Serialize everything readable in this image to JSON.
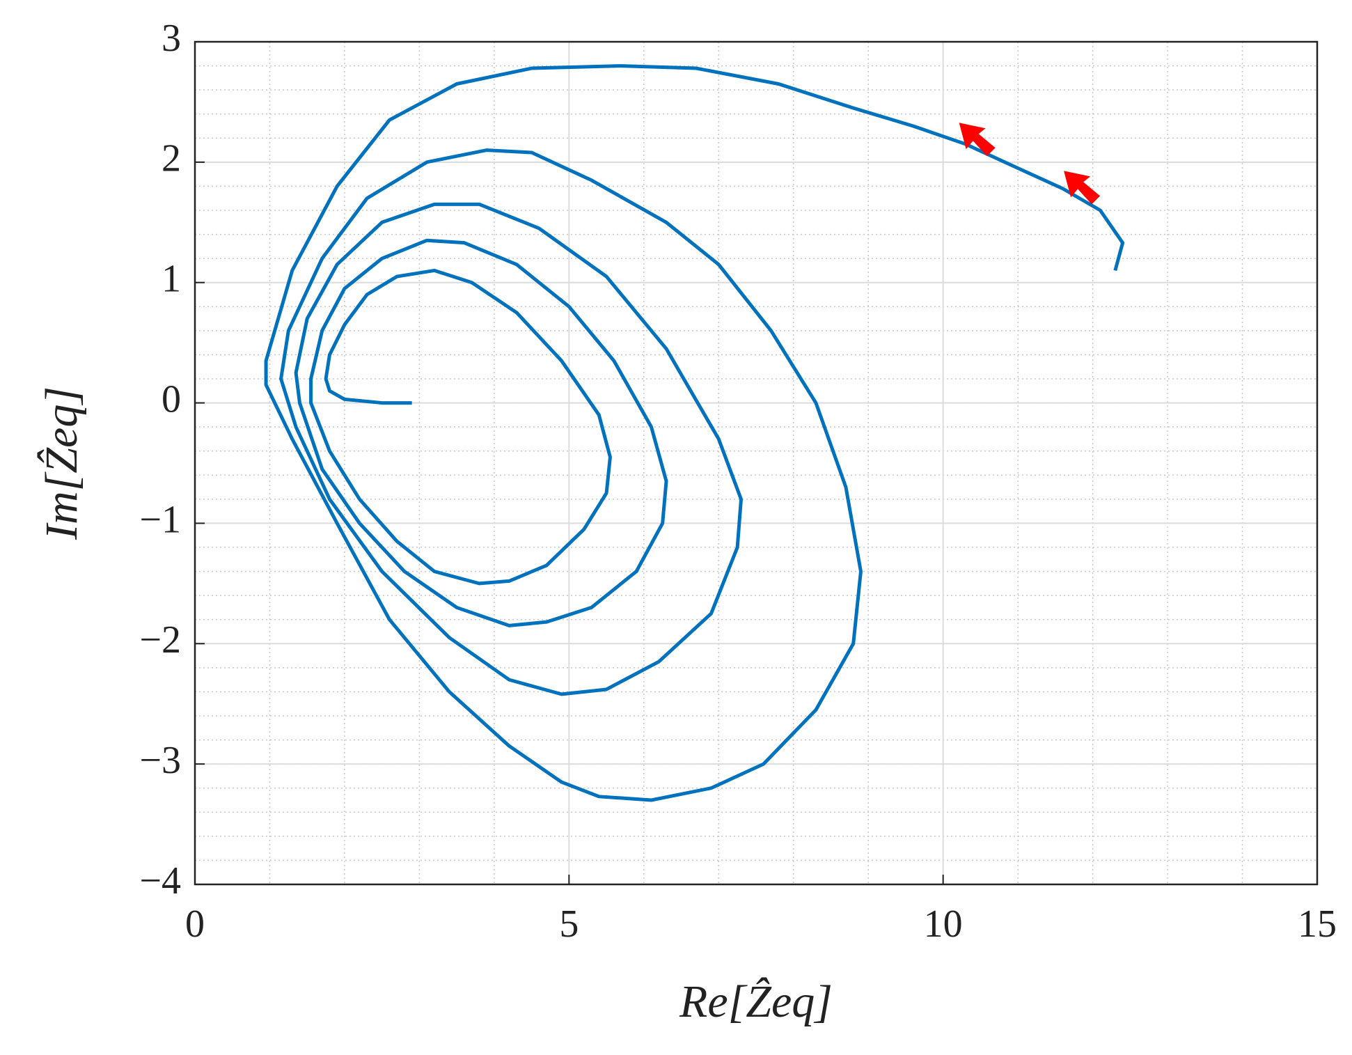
{
  "chart_data": {
    "type": "line",
    "x_label": "Re[Ẑeq]",
    "y_label": "Im[Ẑeq]",
    "series": [
      {
        "color": "#0072bd",
        "x": [
          2.9,
          2.5,
          2.0,
          1.8,
          1.75,
          1.8,
          2.0,
          2.3,
          2.7,
          3.2,
          3.7,
          4.3,
          4.9,
          5.4,
          5.55,
          5.5,
          5.2,
          4.7,
          4.2,
          3.8,
          3.2,
          2.7,
          2.2,
          1.8,
          1.55,
          1.55,
          1.7,
          2.0,
          2.5,
          3.1,
          3.6,
          4.3,
          5.0,
          5.6,
          6.1,
          6.3,
          6.25,
          5.9,
          5.3,
          4.7,
          4.2,
          3.5,
          2.8,
          2.2,
          1.7,
          1.4,
          1.35,
          1.5,
          1.9,
          2.5,
          3.2,
          3.8,
          4.6,
          5.5,
          6.3,
          7.0,
          7.3,
          7.25,
          6.9,
          6.2,
          5.5,
          4.9,
          4.2,
          3.4,
          2.5,
          1.8,
          1.35,
          1.15,
          1.25,
          1.7,
          2.3,
          3.1,
          3.9,
          4.5,
          5.3,
          6.3,
          7.0,
          7.7,
          8.3,
          8.7,
          8.9,
          8.8,
          8.3,
          7.6,
          6.9,
          6.1,
          5.4,
          4.9,
          4.2,
          3.4,
          2.6,
          1.9,
          1.3,
          0.95,
          0.95,
          1.3,
          1.9,
          2.6,
          3.5,
          4.5,
          5.7,
          6.7,
          7.8,
          8.8,
          9.6,
          10.3,
          11.0,
          11.6,
          12.1,
          12.4,
          12.3
        ],
        "values": [
          0,
          0,
          0.03,
          0.1,
          0.2,
          0.4,
          0.65,
          0.9,
          1.05,
          1.1,
          1.0,
          0.75,
          0.35,
          -0.1,
          -0.45,
          -0.75,
          -1.05,
          -1.35,
          -1.48,
          -1.5,
          -1.4,
          -1.15,
          -0.8,
          -0.4,
          0,
          0.2,
          0.6,
          0.95,
          1.2,
          1.35,
          1.33,
          1.15,
          0.8,
          0.35,
          -0.2,
          -0.65,
          -1.0,
          -1.4,
          -1.7,
          -1.82,
          -1.85,
          -1.7,
          -1.4,
          -1.0,
          -0.55,
          0,
          0.25,
          0.7,
          1.15,
          1.5,
          1.65,
          1.65,
          1.45,
          1.05,
          0.45,
          -0.3,
          -0.8,
          -1.2,
          -1.75,
          -2.15,
          -2.38,
          -2.42,
          -2.3,
          -1.95,
          -1.4,
          -0.8,
          -0.2,
          0.2,
          0.6,
          1.2,
          1.7,
          2.0,
          2.1,
          2.08,
          1.85,
          1.5,
          1.15,
          0.6,
          0,
          -0.7,
          -1.4,
          -2.0,
          -2.55,
          -3.0,
          -3.2,
          -3.3,
          -3.27,
          -3.15,
          -2.85,
          -2.4,
          -1.8,
          -1.0,
          -0.3,
          0.15,
          0.35,
          1.1,
          1.8,
          2.35,
          2.65,
          2.78,
          2.8,
          2.78,
          2.65,
          2.45,
          2.3,
          2.15,
          1.95,
          1.78,
          1.6,
          1.33,
          1.1
        ]
      }
    ],
    "arrows": {
      "color": "#ff0000",
      "x": [
        10.4,
        11.8
      ],
      "values": [
        2.2,
        1.8
      ]
    },
    "xlim": [
      0,
      15
    ],
    "xticks": [
      0,
      5,
      10,
      15
    ],
    "ylim": [
      -4,
      3
    ],
    "yticks": [
      {
        "value": -4,
        "label": "−4"
      },
      {
        "value": -3,
        "label": "−3"
      },
      {
        "value": -2,
        "label": "−2"
      },
      {
        "value": -1,
        "label": "−1"
      },
      0,
      1,
      2,
      3
    ],
    "grid": true,
    "minor_grid": true
  }
}
